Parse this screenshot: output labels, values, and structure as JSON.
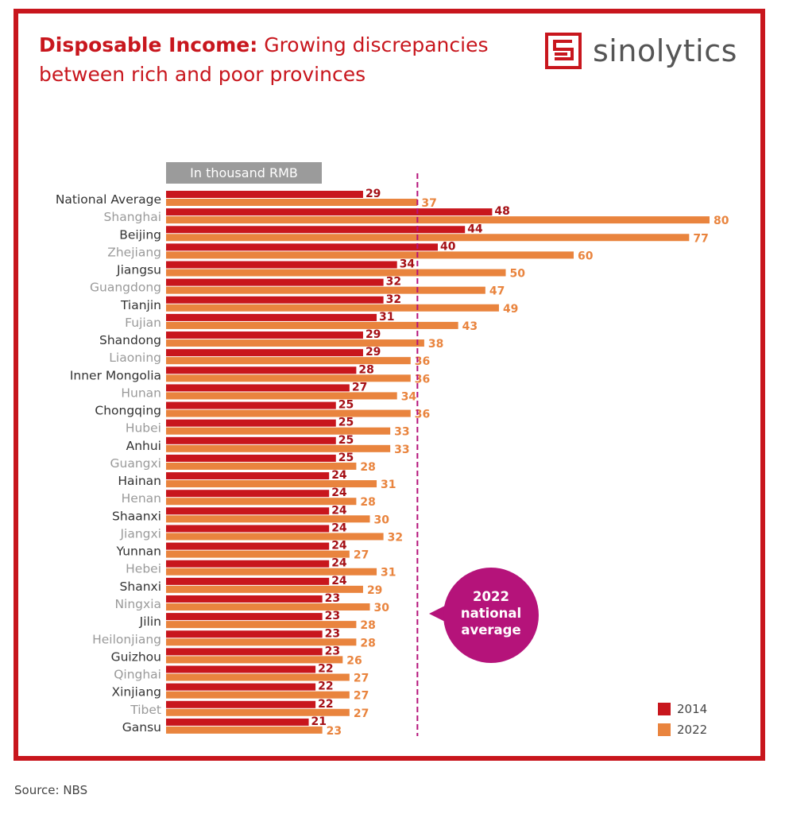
{
  "title": {
    "bold": "Disposable Income:",
    "rest": " Growing discrepancies between rich and poor provinces"
  },
  "logo": {
    "text": "sinolytics",
    "icon": "sinolytics-logo-icon"
  },
  "unit_label": "In thousand RMB",
  "annotation": {
    "line1": "2022",
    "line2": "national",
    "line3": "average"
  },
  "source": "Source: NBS",
  "colors": {
    "frame": "#c8161d",
    "s2014": "#c8161d",
    "s2022": "#e9843e",
    "average_line": "#b5137a",
    "bubble": "#b5137a"
  },
  "chart_data": {
    "type": "bar",
    "orientation": "horizontal",
    "categories": [
      "National Average",
      "Shanghai",
      "Beijing",
      "Zhejiang",
      "Jiangsu",
      "Guangdong",
      "Tianjin",
      "Fujian",
      "Shandong",
      "Liaoning",
      "Inner Mongolia",
      "Hunan",
      "Chongqing",
      "Hubei",
      "Anhui",
      "Guangxi",
      "Hainan",
      "Henan",
      "Shaanxi",
      "Jiangxi",
      "Yunnan",
      "Hebei",
      "Shanxi",
      "Ningxia",
      "Jilin",
      "Heilonjiang",
      "Guizhou",
      "Qinghai",
      "Xinjiang",
      "Tibet",
      "Gansu"
    ],
    "series": [
      {
        "name": "2014",
        "values": [
          29,
          48,
          44,
          40,
          34,
          32,
          32,
          31,
          29,
          29,
          28,
          27,
          25,
          25,
          25,
          25,
          24,
          24,
          24,
          24,
          24,
          24,
          24,
          23,
          23,
          23,
          23,
          22,
          22,
          22,
          21
        ]
      },
      {
        "name": "2022",
        "values": [
          37,
          80,
          77,
          60,
          50,
          47,
          49,
          43,
          38,
          36,
          36,
          34,
          36,
          33,
          33,
          28,
          31,
          28,
          30,
          32,
          27,
          31,
          29,
          30,
          28,
          28,
          26,
          27,
          27,
          27,
          23
        ]
      }
    ],
    "reference_line": {
      "value": 37
    },
    "legend": "bottom-right",
    "unit": "In thousand RMB"
  }
}
